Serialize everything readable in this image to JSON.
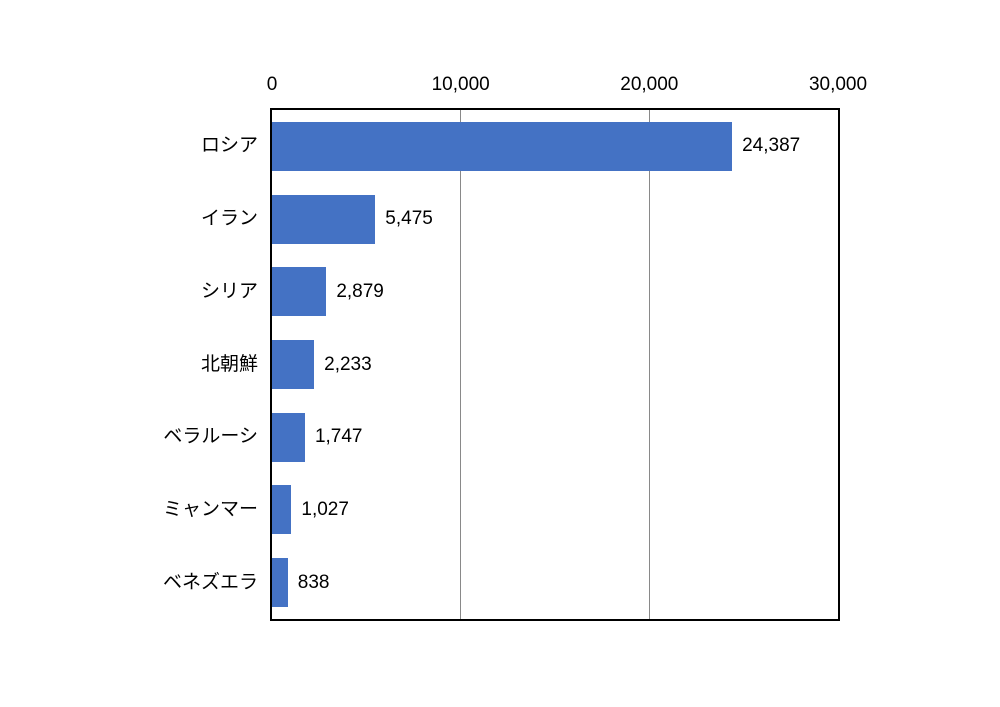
{
  "chart_data": {
    "type": "bar",
    "orientation": "horizontal",
    "title": "",
    "xlabel": "",
    "ylabel": "",
    "categories": [
      "ロシア",
      "イラン",
      "シリア",
      "北朝鮮",
      "ベラルーシ",
      "ミャンマー",
      "ベネズエラ"
    ],
    "values": [
      24387,
      5475,
      2879,
      2233,
      1747,
      1027,
      838
    ],
    "value_labels": [
      "24,387",
      "5,475",
      "2,879",
      "2,233",
      "1,747",
      "1,027",
      "838"
    ],
    "x_axis": {
      "position": "top",
      "min": 0,
      "max": 30000,
      "ticks": [
        0,
        10000,
        20000,
        30000
      ],
      "tick_labels": [
        "0",
        "10,000",
        "20,000",
        "30,000"
      ]
    },
    "grid": true,
    "legend": false,
    "colors": {
      "bar": "#4472C4",
      "gridline": "#898989",
      "plot_border": "#000000",
      "background": "#FFFFFF",
      "text": "#000000"
    }
  }
}
